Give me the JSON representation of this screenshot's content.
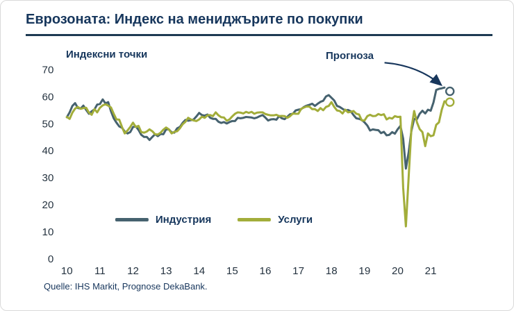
{
  "footer": {
    "source": "Quelle: IHS Markit, Prognose DekaBank."
  },
  "chart_data": {
    "type": "line",
    "title": "Еврозоната: Индекс на мениджърите по покупки",
    "ylabel": "Индексни точки",
    "xlabel": "",
    "ylim": [
      0,
      70
    ],
    "yticks": [
      0,
      10,
      20,
      30,
      40,
      50,
      60,
      70
    ],
    "xticks": [
      10,
      11,
      12,
      13,
      14,
      15,
      16,
      17,
      18,
      19,
      20,
      21
    ],
    "x_range": [
      2009.9,
      2022.4
    ],
    "x_start_year": 2010,
    "x_interval_months": 1,
    "grid": false,
    "legend_position": "bottom-center-inside",
    "colors": {
      "industry": "#46626f",
      "services": "#a2ad3a",
      "accent": "#17365c"
    },
    "annotations": [
      {
        "text": "Прогноза",
        "target": "forecast_points"
      }
    ],
    "series": [
      {
        "name": "Индустрия",
        "key": "industry",
        "values": [
          52.4,
          54.2,
          56.6,
          57.6,
          55.8,
          55.6,
          56.7,
          55.1,
          53.7,
          54.6,
          55.3,
          57.1,
          57.3,
          59.0,
          57.5,
          58.0,
          54.6,
          52.0,
          50.4,
          49.0,
          48.5,
          47.1,
          46.4,
          46.9,
          48.8,
          49.0,
          47.7,
          45.9,
          45.1,
          45.1,
          44.0,
          45.1,
          46.1,
          45.4,
          46.2,
          46.1,
          47.9,
          47.9,
          46.8,
          46.7,
          48.3,
          48.8,
          50.3,
          51.4,
          51.1,
          51.3,
          51.6,
          52.7,
          54.0,
          53.2,
          53.0,
          53.4,
          52.2,
          51.8,
          51.8,
          50.7,
          50.3,
          50.6,
          50.1,
          50.6,
          51.0,
          51.0,
          52.2,
          52.0,
          52.2,
          52.5,
          52.4,
          52.3,
          52.0,
          52.3,
          52.8,
          53.2,
          52.3,
          51.2,
          51.6,
          51.7,
          51.5,
          52.8,
          52.0,
          51.7,
          52.6,
          53.5,
          53.7,
          54.9,
          55.2,
          55.4,
          56.2,
          56.7,
          57.0,
          57.4,
          56.6,
          57.4,
          58.1,
          58.5,
          60.1,
          60.6,
          59.6,
          58.6,
          56.6,
          56.2,
          55.5,
          54.9,
          55.1,
          54.6,
          53.2,
          52.0,
          51.8,
          51.4,
          50.5,
          49.3,
          47.5,
          47.9,
          47.7,
          47.6,
          46.5,
          47.0,
          45.7,
          45.9,
          46.9,
          46.3,
          47.9,
          49.2,
          44.5,
          33.4,
          39.4,
          47.4,
          51.8,
          51.7,
          53.7,
          54.8,
          53.8,
          55.2,
          54.8,
          57.9,
          62.5,
          62.9,
          63.1,
          63.4
        ]
      },
      {
        "name": "Услуги",
        "key": "services",
        "values": [
          52.5,
          51.8,
          54.1,
          55.6,
          56.2,
          55.5,
          55.8,
          55.9,
          54.1,
          53.3,
          55.4,
          54.2,
          55.9,
          56.8,
          57.2,
          56.7,
          56.0,
          53.7,
          51.6,
          51.5,
          48.8,
          46.4,
          47.5,
          48.8,
          50.4,
          48.8,
          49.2,
          46.9,
          46.7,
          47.1,
          47.9,
          47.2,
          46.1,
          46.0,
          46.7,
          47.8,
          48.6,
          47.9,
          46.4,
          47.0,
          47.2,
          48.3,
          49.8,
          50.7,
          52.2,
          51.6,
          51.2,
          51.0,
          51.6,
          52.6,
          52.2,
          53.1,
          53.2,
          52.8,
          54.2,
          53.1,
          52.4,
          52.3,
          51.1,
          51.6,
          52.7,
          53.7,
          54.2,
          54.1,
          53.8,
          54.4,
          54.0,
          54.4,
          53.7,
          54.1,
          54.2,
          54.2,
          53.6,
          53.3,
          53.1,
          53.1,
          53.3,
          52.8,
          52.9,
          52.8,
          52.2,
          52.8,
          53.8,
          53.7,
          53.7,
          55.5,
          56.0,
          56.4,
          56.3,
          55.4,
          55.4,
          54.7,
          55.8,
          55.0,
          56.2,
          56.6,
          58.0,
          56.2,
          54.9,
          54.7,
          53.8,
          55.2,
          54.2,
          54.4,
          54.7,
          53.7,
          53.4,
          51.2,
          51.2,
          52.8,
          53.3,
          52.8,
          52.9,
          53.6,
          53.2,
          53.5,
          51.6,
          52.2,
          51.9,
          52.8,
          52.5,
          52.6,
          26.4,
          12.0,
          30.5,
          48.3,
          54.7,
          50.5,
          48.0,
          46.9,
          41.7,
          46.4,
          45.4,
          45.7,
          49.6,
          50.5,
          55.2,
          58.3
        ]
      }
    ],
    "forecast": {
      "x": 2021.58,
      "points": [
        {
          "series": "Индустрия",
          "value": 62.0
        },
        {
          "series": "Услуги",
          "value": 58.0
        }
      ]
    }
  }
}
